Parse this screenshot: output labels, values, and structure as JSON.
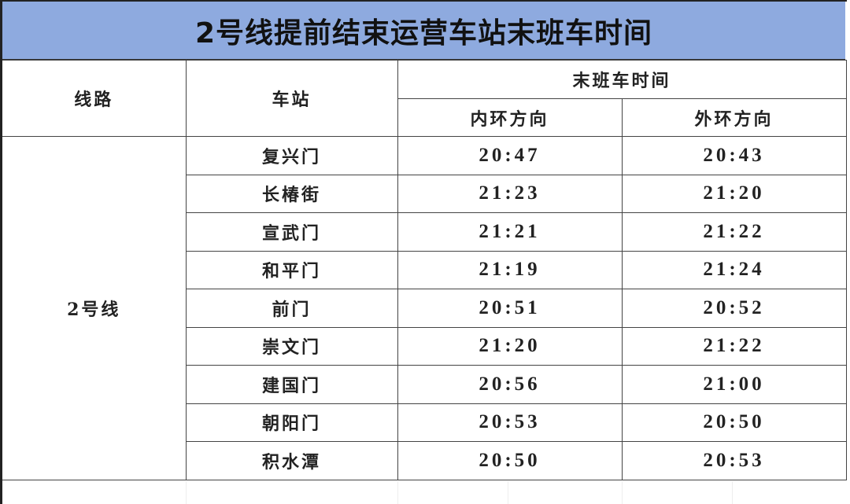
{
  "title": "2号线提前结束运营车站末班车时间",
  "header": {
    "line": "线路",
    "station": "车站",
    "last_train": "末班车时间",
    "inner": "内环方向",
    "outer": "外环方向"
  },
  "line_name": "2号线",
  "rows": [
    {
      "station": "复兴门",
      "inner": "20:47",
      "outer": "20:43"
    },
    {
      "station": "长椿街",
      "inner": "21:23",
      "outer": "21:20"
    },
    {
      "station": "宣武门",
      "inner": "21:21",
      "outer": "21:22"
    },
    {
      "station": "和平门",
      "inner": "21:19",
      "outer": "21:24"
    },
    {
      "station": "前门",
      "inner": "20:51",
      "outer": "20:52"
    },
    {
      "station": "崇文门",
      "inner": "21:20",
      "outer": "21:22"
    },
    {
      "station": "建国门",
      "inner": "20:56",
      "outer": "21:00"
    },
    {
      "station": "朝阳门",
      "inner": "20:53",
      "outer": "20:50"
    },
    {
      "station": "积水潭",
      "inner": "20:50",
      "outer": "20:53"
    }
  ],
  "colors": {
    "title_bg": "#8eaadf"
  }
}
